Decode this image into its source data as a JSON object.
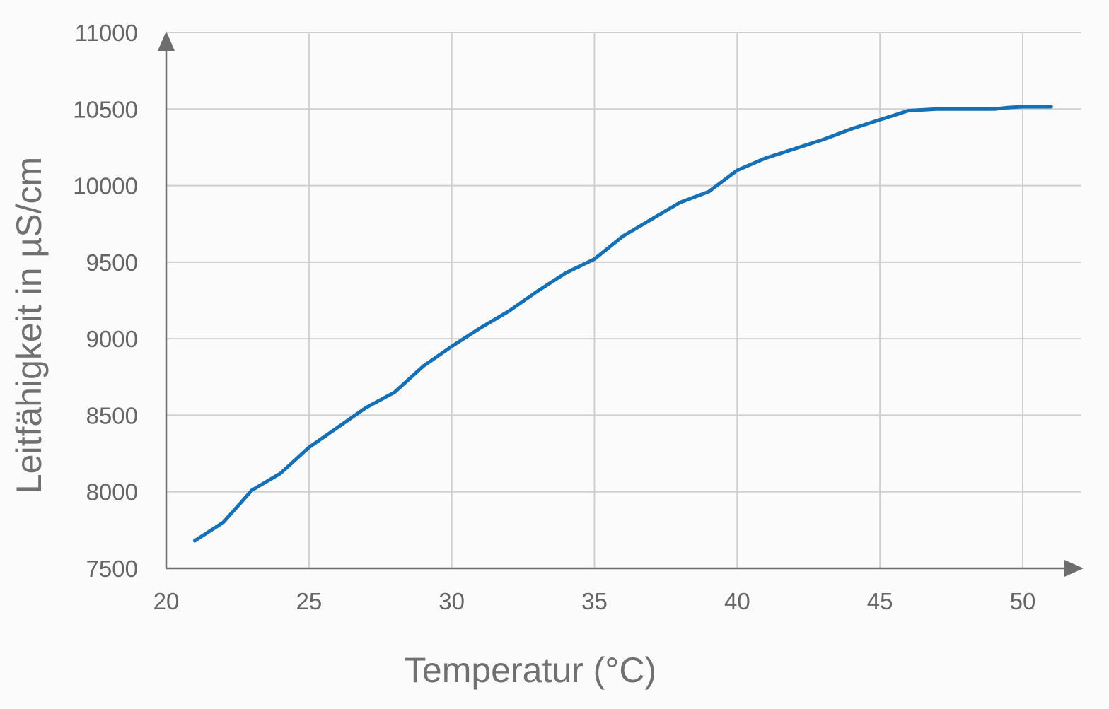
{
  "chart_data": {
    "type": "line",
    "xlabel": "Temperatur (°C)",
    "ylabel": "Leitfähigkeit in µS/cm",
    "xlim": [
      20,
      51.5
    ],
    "ylim": [
      7500,
      11000
    ],
    "xticks": [
      20,
      25,
      30,
      35,
      40,
      45,
      50
    ],
    "yticks": [
      7500,
      8000,
      8500,
      9000,
      9500,
      10000,
      10500,
      11000
    ],
    "xtick_labels": [
      "20",
      "25",
      "30",
      "35",
      "40",
      "45",
      "50"
    ],
    "ytick_labels": [
      "7500",
      "8000",
      "8500",
      "9000",
      "9500",
      "10000",
      "10500",
      "11000"
    ],
    "grid": true,
    "series": [
      {
        "color": "#1570b6",
        "x": [
          21,
          22,
          23,
          24,
          25,
          26,
          27,
          28,
          29,
          30,
          31,
          32,
          33,
          34,
          35,
          36,
          37,
          38,
          39,
          40,
          41,
          42,
          43,
          44,
          45,
          46,
          47,
          48,
          49,
          49.5,
          50,
          51
        ],
        "y": [
          7680,
          7800,
          8010,
          8120,
          8290,
          8420,
          8550,
          8650,
          8820,
          8950,
          9070,
          9180,
          9310,
          9430,
          9520,
          9670,
          9780,
          9890,
          9960,
          10100,
          10180,
          10240,
          10300,
          10370,
          10430,
          10490,
          10500,
          10500,
          10500,
          10510,
          10515,
          10515
        ]
      }
    ]
  }
}
